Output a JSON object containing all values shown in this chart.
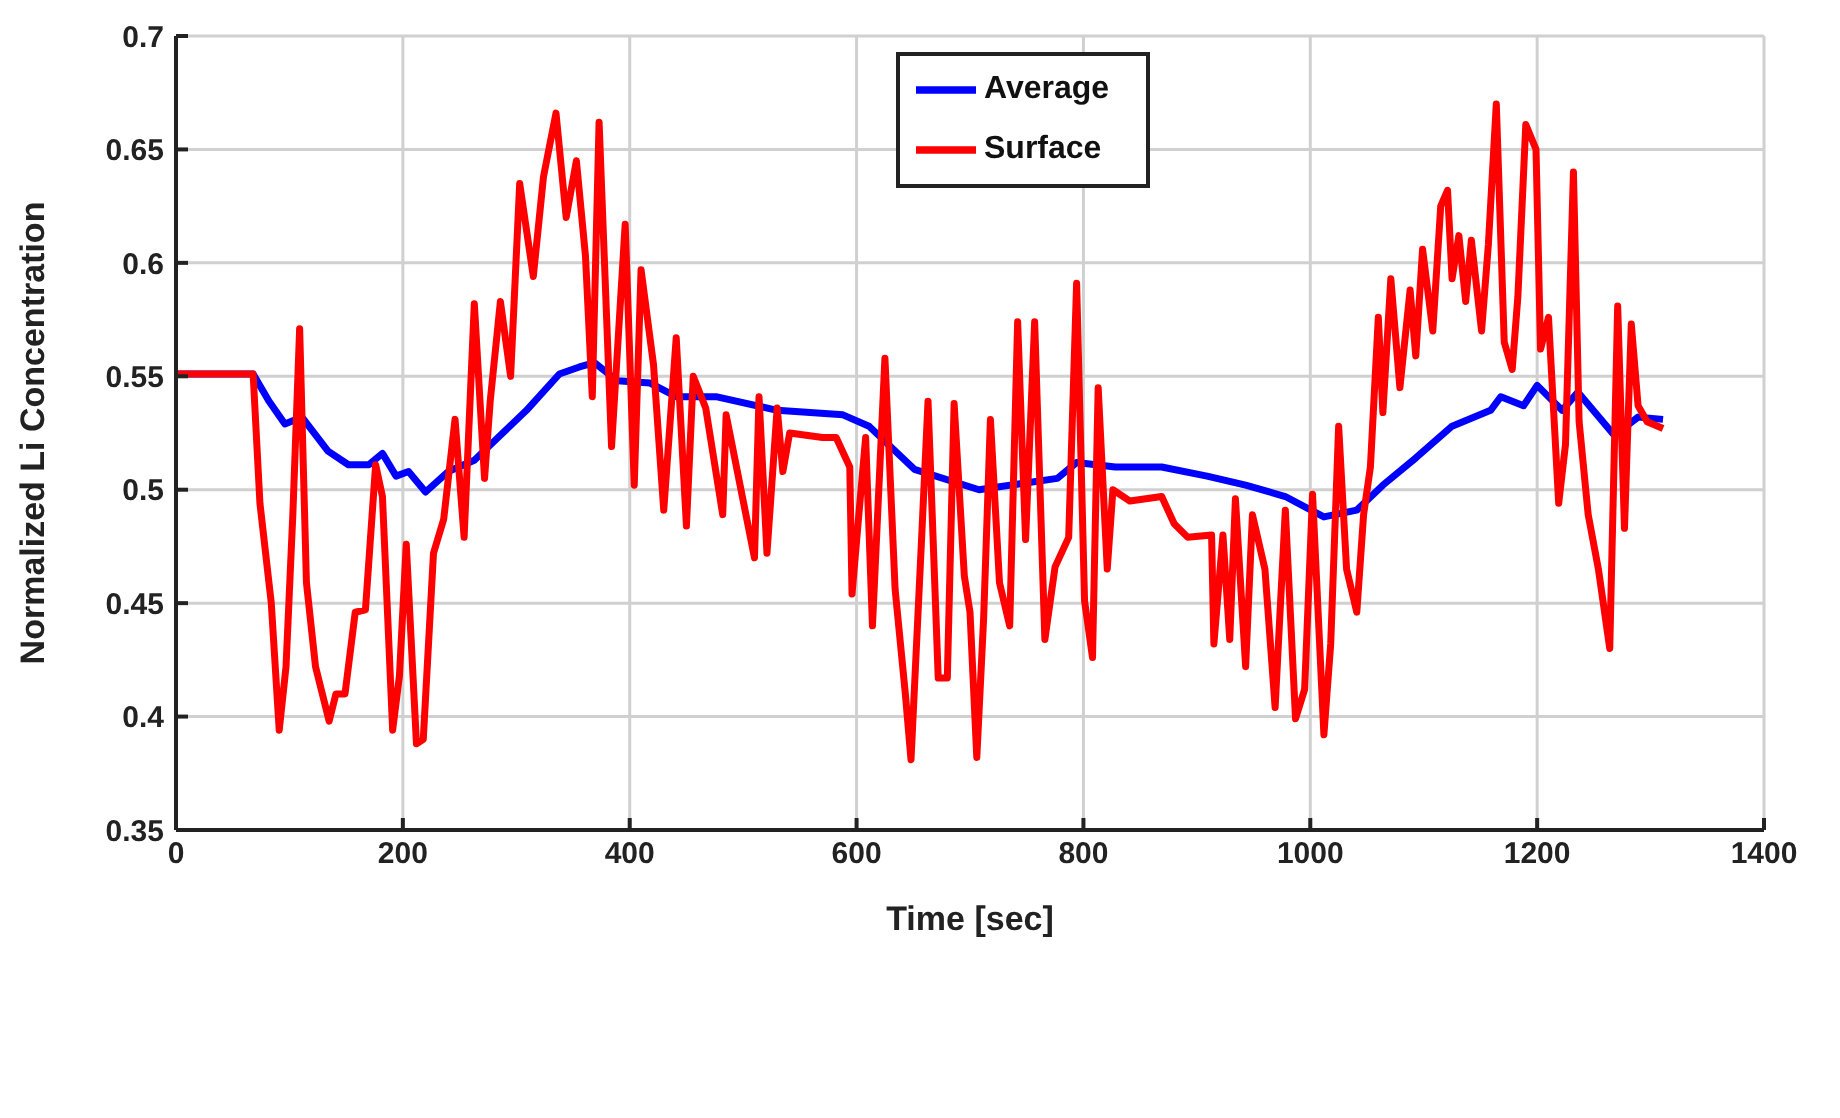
{
  "chart_data": {
    "type": "line",
    "xlabel": "Time [sec]",
    "ylabel": "Normalized Li Concentration",
    "xlim": [
      0,
      1400
    ],
    "xticks": [
      0,
      200,
      400,
      600,
      800,
      1000,
      1200,
      1400
    ],
    "ylim": [
      0.35,
      0.7
    ],
    "yticks": [
      0.35,
      0.4,
      0.45,
      0.5,
      0.55,
      0.6,
      0.65,
      0.7
    ],
    "grid": true,
    "legend": "top",
    "marker": "none",
    "line_style": "solid",
    "series": [
      {
        "name": "Average",
        "color": "#0000ff",
        "x": [
          0,
          68,
          82,
          96,
          111,
          134,
          152,
          170,
          182,
          194,
          205,
          220,
          240,
          263,
          286,
          309,
          338,
          355,
          369,
          389,
          418,
          441,
          476,
          530,
          588,
          611,
          651,
          708,
          777,
          794,
          828,
          869,
          909,
          943,
          978,
          1012,
          1041,
          1064,
          1093,
          1125,
          1159,
          1168,
          1188,
          1200,
          1222,
          1236,
          1268,
          1289,
          1311
        ],
        "values": [
          0.551,
          0.551,
          0.539,
          0.529,
          0.532,
          0.517,
          0.511,
          0.511,
          0.516,
          0.506,
          0.508,
          0.499,
          0.508,
          0.513,
          0.524,
          0.535,
          0.551,
          0.554,
          0.556,
          0.548,
          0.547,
          0.541,
          0.541,
          0.535,
          0.533,
          0.528,
          0.509,
          0.5,
          0.505,
          0.512,
          0.51,
          0.51,
          0.506,
          0.502,
          0.497,
          0.488,
          0.491,
          0.502,
          0.514,
          0.528,
          0.535,
          0.541,
          0.537,
          0.546,
          0.535,
          0.543,
          0.524,
          0.532,
          0.531
        ]
      },
      {
        "name": "Surface",
        "color": "#ff0000",
        "x": [
          0,
          68,
          74,
          84,
          91,
          97,
          103,
          109,
          115,
          123,
          135,
          141,
          149,
          158,
          167,
          176,
          182,
          191,
          197,
          203,
          212,
          218,
          227,
          236,
          246,
          254,
          263,
          272,
          277,
          286,
          295,
          303,
          315,
          324,
          335,
          344,
          353,
          361,
          367,
          373,
          384,
          396,
          404,
          410,
          421,
          430,
          441,
          450,
          456,
          467,
          482,
          485,
          510,
          514,
          521,
          530,
          535,
          541,
          570,
          582,
          594,
          596,
          602,
          608,
          614,
          625,
          634,
          643,
          648,
          657,
          663,
          672,
          680,
          686,
          695,
          700,
          706,
          712,
          718,
          726,
          735,
          742,
          749,
          757,
          766,
          775,
          787,
          794,
          801,
          808,
          813,
          821,
          826,
          841,
          869,
          880,
          892,
          913,
          915,
          923,
          929,
          934,
          943,
          949,
          960,
          969,
          978,
          987,
          995,
          1002,
          1012,
          1018,
          1025,
          1032,
          1041,
          1047,
          1053,
          1060,
          1064,
          1071,
          1079,
          1088,
          1093,
          1099,
          1108,
          1115,
          1121,
          1125,
          1131,
          1137,
          1142,
          1151,
          1157,
          1164,
          1171,
          1178,
          1183,
          1190,
          1199,
          1203,
          1210,
          1219,
          1225,
          1232,
          1237,
          1245,
          1254,
          1264,
          1271,
          1277,
          1283,
          1289,
          1297,
          1311
        ],
        "values": [
          0.551,
          0.551,
          0.494,
          0.45,
          0.394,
          0.422,
          0.489,
          0.571,
          0.459,
          0.422,
          0.398,
          0.41,
          0.41,
          0.446,
          0.447,
          0.511,
          0.497,
          0.394,
          0.418,
          0.476,
          0.388,
          0.39,
          0.472,
          0.487,
          0.531,
          0.479,
          0.582,
          0.505,
          0.539,
          0.583,
          0.55,
          0.635,
          0.594,
          0.638,
          0.666,
          0.62,
          0.645,
          0.603,
          0.541,
          0.662,
          0.519,
          0.617,
          0.502,
          0.597,
          0.555,
          0.491,
          0.567,
          0.484,
          0.55,
          0.536,
          0.489,
          0.533,
          0.47,
          0.541,
          0.472,
          0.536,
          0.508,
          0.525,
          0.523,
          0.523,
          0.51,
          0.454,
          0.489,
          0.523,
          0.44,
          0.558,
          0.456,
          0.41,
          0.381,
          0.475,
          0.539,
          0.417,
          0.417,
          0.538,
          0.462,
          0.446,
          0.382,
          0.443,
          0.531,
          0.459,
          0.44,
          0.574,
          0.478,
          0.574,
          0.434,
          0.466,
          0.479,
          0.591,
          0.451,
          0.426,
          0.545,
          0.465,
          0.5,
          0.495,
          0.497,
          0.485,
          0.479,
          0.48,
          0.432,
          0.48,
          0.434,
          0.496,
          0.422,
          0.489,
          0.465,
          0.404,
          0.491,
          0.399,
          0.412,
          0.498,
          0.392,
          0.432,
          0.528,
          0.465,
          0.446,
          0.489,
          0.51,
          0.576,
          0.534,
          0.593,
          0.545,
          0.588,
          0.559,
          0.606,
          0.57,
          0.625,
          0.632,
          0.593,
          0.612,
          0.583,
          0.61,
          0.57,
          0.608,
          0.67,
          0.565,
          0.553,
          0.585,
          0.661,
          0.65,
          0.562,
          0.576,
          0.494,
          0.52,
          0.64,
          0.53,
          0.489,
          0.465,
          0.43,
          0.581,
          0.483,
          0.573,
          0.537,
          0.53,
          0.527
        ]
      }
    ]
  }
}
